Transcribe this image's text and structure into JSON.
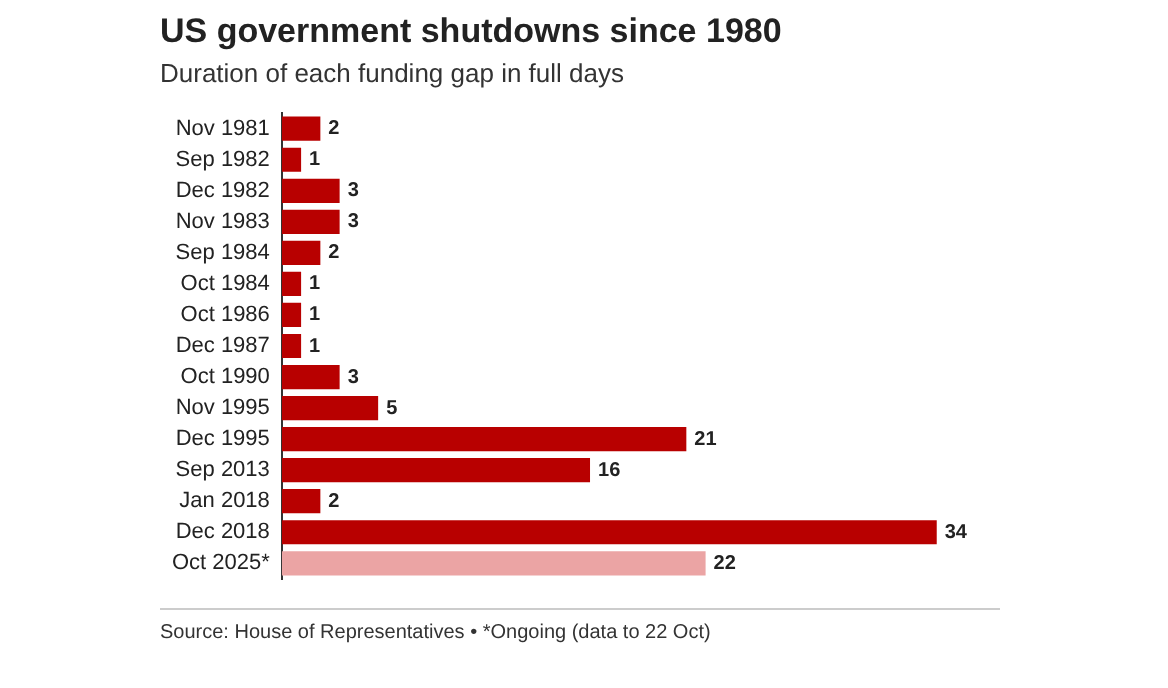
{
  "chart_data": {
    "type": "bar",
    "orientation": "horizontal",
    "title": "US government shutdowns since 1980",
    "subtitle": "Duration of each funding gap in full days",
    "categories": [
      "Nov 1981",
      "Sep 1982",
      "Dec 1982",
      "Nov 1983",
      "Sep 1984",
      "Oct 1984",
      "Oct 1986",
      "Dec 1987",
      "Oct 1990",
      "Nov 1995",
      "Dec 1995",
      "Sep 2013",
      "Jan 2018",
      "Dec 2018",
      "Oct 2025*"
    ],
    "values": [
      2,
      1,
      3,
      3,
      2,
      1,
      1,
      1,
      3,
      5,
      21,
      16,
      2,
      34,
      22
    ],
    "colors": [
      "#b80000",
      "#b80000",
      "#b80000",
      "#b80000",
      "#b80000",
      "#b80000",
      "#b80000",
      "#b80000",
      "#b80000",
      "#b80000",
      "#b80000",
      "#b80000",
      "#b80000",
      "#b80000",
      "#eba4a4"
    ],
    "data_labels": true,
    "legend": false,
    "tick_labels": "y",
    "annotations": [
      "Source: House of Representatives • *Ongoing (data to 22 Oct)"
    ]
  }
}
